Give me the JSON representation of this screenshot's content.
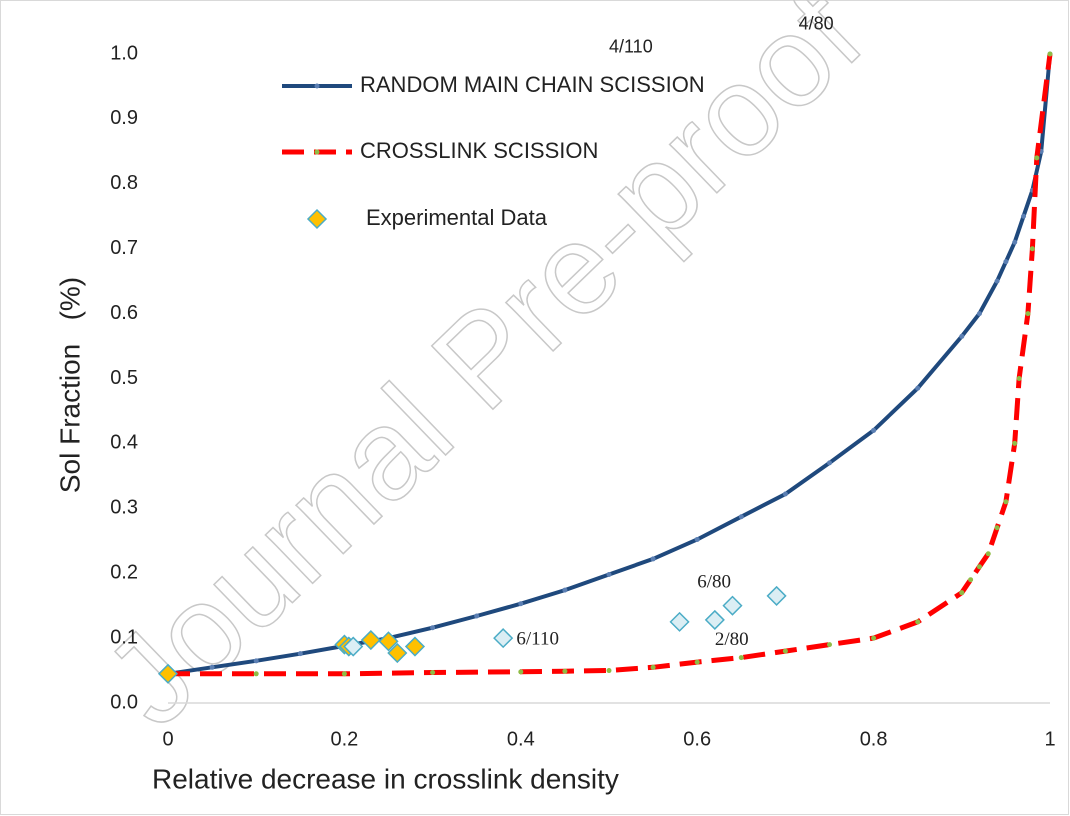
{
  "chart_data": {
    "type": "line",
    "xlabel": "Relative decrease in crosslink density",
    "ylabel": "Sol Fraction   (%)",
    "watermark": "Journal Pre-proof",
    "xlim": [
      0,
      1
    ],
    "ylim": [
      0,
      1
    ],
    "xticks": [
      0,
      0.2,
      0.4,
      0.6,
      0.8,
      1
    ],
    "yticks": [
      {
        "value": 0,
        "label": "0.0"
      },
      0.1,
      0.2,
      0.3,
      0.4,
      0.5,
      0.6,
      0.7,
      0.8,
      0.9,
      {
        "value": 1,
        "label": "1.0"
      }
    ],
    "grid": false,
    "series": [
      {
        "name": "RANDOM MAIN CHAIN SCISSION",
        "type": "line",
        "color": "#1f497d",
        "marker_color": "#5b7fb3",
        "x": [
          0,
          0.05,
          0.1,
          0.15,
          0.2,
          0.25,
          0.3,
          0.35,
          0.4,
          0.45,
          0.5,
          0.55,
          0.6,
          0.65,
          0.7,
          0.75,
          0.8,
          0.85,
          0.9,
          0.92,
          0.94,
          0.95,
          0.96,
          0.97,
          0.98,
          0.99,
          1
        ],
        "values": [
          0.045,
          0.055,
          0.065,
          0.076,
          0.088,
          0.1,
          0.116,
          0.134,
          0.153,
          0.174,
          0.198,
          0.222,
          0.252,
          0.287,
          0.322,
          0.37,
          0.42,
          0.485,
          0.565,
          0.6,
          0.65,
          0.68,
          0.71,
          0.75,
          0.79,
          0.85,
          1.0
        ]
      },
      {
        "name": "CROSSLINK SCISSION",
        "type": "line",
        "dashed": true,
        "color": "#ff0000",
        "marker_color": "#8fbc45",
        "x": [
          0,
          0.1,
          0.2,
          0.3,
          0.4,
          0.45,
          0.5,
          0.55,
          0.6,
          0.65,
          0.7,
          0.75,
          0.8,
          0.85,
          0.9,
          0.91,
          0.92,
          0.93,
          0.94,
          0.95,
          0.96,
          0.965,
          0.975,
          0.98,
          0.985,
          1
        ],
        "values": [
          0.045,
          0.045,
          0.045,
          0.047,
          0.048,
          0.049,
          0.05,
          0.055,
          0.063,
          0.07,
          0.08,
          0.09,
          0.1,
          0.125,
          0.17,
          0.19,
          0.21,
          0.23,
          0.27,
          0.31,
          0.4,
          0.5,
          0.6,
          0.7,
          0.84,
          1.0
        ]
      },
      {
        "name": "Experimental Data",
        "type": "scatter",
        "color": "#ffc000",
        "edge": "#4bacc6",
        "x": [
          0,
          0.2,
          0.205,
          0.23,
          0.25,
          0.26,
          0.28
        ],
        "values": [
          0.045,
          0.09,
          0.087,
          0.097,
          0.095,
          0.077,
          0.087
        ]
      },
      {
        "type": "scatter",
        "color": "#dbeef4",
        "edge": "#4bacc6",
        "x": [
          0.21,
          0.38,
          0.58,
          0.62,
          0.64,
          0.69
        ],
        "values": [
          0.087,
          0.1,
          0.125,
          0.128,
          0.15,
          0.165
        ]
      }
    ],
    "annotations": [
      {
        "text": "4/110",
        "x": 0.5,
        "y": 1.01,
        "serif": false
      },
      {
        "text": "4/80",
        "x": 0.715,
        "y": 1.045,
        "serif": false
      },
      {
        "text": "6/80",
        "x": 0.6,
        "y": 0.185,
        "serif": true
      },
      {
        "text": "6/110",
        "x": 0.395,
        "y": 0.097,
        "serif": true
      },
      {
        "text": "2/80",
        "x": 0.62,
        "y": 0.096,
        "serif": true
      }
    ]
  }
}
